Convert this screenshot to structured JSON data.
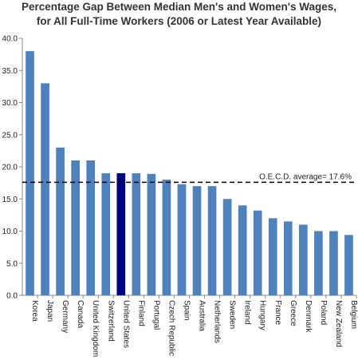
{
  "chart_data": {
    "type": "bar",
    "title_line1": "Percentage Gap Between Median Men's and Women's Wages,",
    "title_line2": "for All Full-Time Workers (2006 or Latest Year Available)",
    "xlabel": "",
    "ylabel": "",
    "ylim": [
      0,
      40
    ],
    "yticks": [
      "0.0",
      "5.0",
      "10.0",
      "15.0",
      "20.0",
      "25.0",
      "30.0",
      "35.0",
      "40.0"
    ],
    "categories": [
      "Korea",
      "Japan",
      "Germany",
      "Canada",
      "United Kingdom",
      "Switzerland",
      "United States",
      "Finland",
      "Portugal",
      "Czech Republic",
      "Spain",
      "Australia",
      "Netherlands",
      "Sweden",
      "Ireland",
      "Hungary",
      "France",
      "Greece",
      "Denmark",
      "Poland",
      "New Zealand",
      "Belgium"
    ],
    "values": [
      38.0,
      33.0,
      23.0,
      21.0,
      21.0,
      19.0,
      19.0,
      19.0,
      18.9,
      18.0,
      17.3,
      17.0,
      17.0,
      15.0,
      14.0,
      13.2,
      12.0,
      11.5,
      11.0,
      10.0,
      10.0,
      9.4
    ],
    "highlight_category": "United States",
    "reference_line": {
      "value": 17.6,
      "label": "O.E.C.D. average= 17.6%"
    },
    "colors": {
      "bar": "#4f81bd",
      "highlight": "#000080",
      "reference": "#000000",
      "grid": "#c0c0c0"
    },
    "grid": false,
    "legend": "none"
  }
}
